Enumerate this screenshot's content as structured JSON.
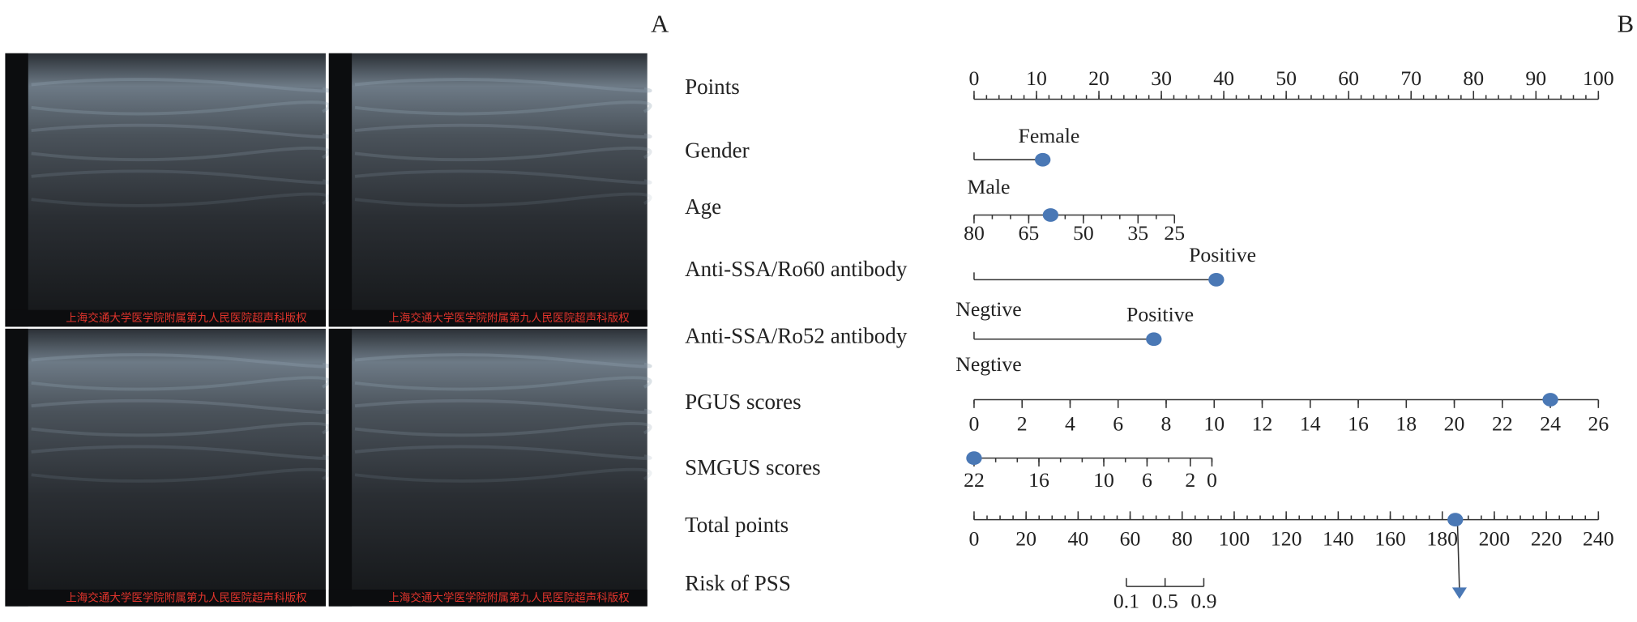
{
  "panel_a": {
    "label": "A",
    "images": [
      {
        "caption": "上海交通大学医学院附属第九人民医院超声科版权"
      },
      {
        "caption": "上海交通大学医学院附属第九人民医院超声科版权"
      },
      {
        "caption": "上海交通大学医学院附属第九人民医院超声科版权"
      },
      {
        "caption": "上海交通大学医学院附属第九人民医院超声科版权"
      }
    ]
  },
  "nomogram": {
    "label": "B",
    "marker_color": "#4a78b5",
    "rows": [
      {
        "label": "Points",
        "kind": "scale",
        "range": [
          0,
          100
        ],
        "points": [
          0,
          100
        ],
        "ticks": [
          0,
          10,
          20,
          30,
          40,
          50,
          60,
          70,
          80,
          90,
          100
        ],
        "minor_step": 2
      },
      {
        "label": "Gender",
        "kind": "binary",
        "levels": [
          "Male",
          "Female"
        ],
        "points": [
          0,
          11
        ]
      },
      {
        "label": "Age",
        "kind": "scale",
        "range": [
          80,
          25
        ],
        "points": [
          0,
          32.1
        ],
        "ticks": [
          80,
          65,
          50,
          35,
          25
        ],
        "minor_step": 5,
        "marker": 59
      },
      {
        "label": "Anti-SSA/Ro60 antibody",
        "kind": "binary",
        "levels": [
          "Negtive",
          "Positive"
        ],
        "points": [
          0,
          38.8
        ]
      },
      {
        "label": "Anti-SSA/Ro52 antibody",
        "kind": "binary",
        "levels": [
          "Negtive",
          "Positive"
        ],
        "points": [
          0,
          28.8
        ]
      },
      {
        "label": "PGUS scores",
        "kind": "scale",
        "range": [
          0,
          26
        ],
        "points": [
          0,
          100
        ],
        "ticks": [
          0,
          2,
          4,
          6,
          8,
          10,
          12,
          14,
          16,
          18,
          20,
          22,
          24,
          26
        ],
        "minor_step": 2,
        "marker": 24
      },
      {
        "label": "SMGUS scores",
        "kind": "scale",
        "range": [
          22,
          0
        ],
        "points": [
          0,
          38.1
        ],
        "ticks": [
          22,
          16,
          10,
          6,
          2,
          0
        ],
        "minor_step": 2,
        "marker": 22
      },
      {
        "label": "Total points",
        "kind": "scale",
        "range": [
          0,
          240
        ],
        "points": [
          0,
          100
        ],
        "ticks": [
          0,
          20,
          40,
          60,
          80,
          100,
          120,
          140,
          160,
          180,
          200,
          220,
          240
        ],
        "minor_step": 5,
        "marker": 185
      },
      {
        "label": "Risk of PSS",
        "kind": "points_ticks",
        "ticks": [
          0.1,
          0.5,
          0.9
        ],
        "tick_points": [
          24.4,
          30.6,
          36.8
        ]
      }
    ]
  }
}
